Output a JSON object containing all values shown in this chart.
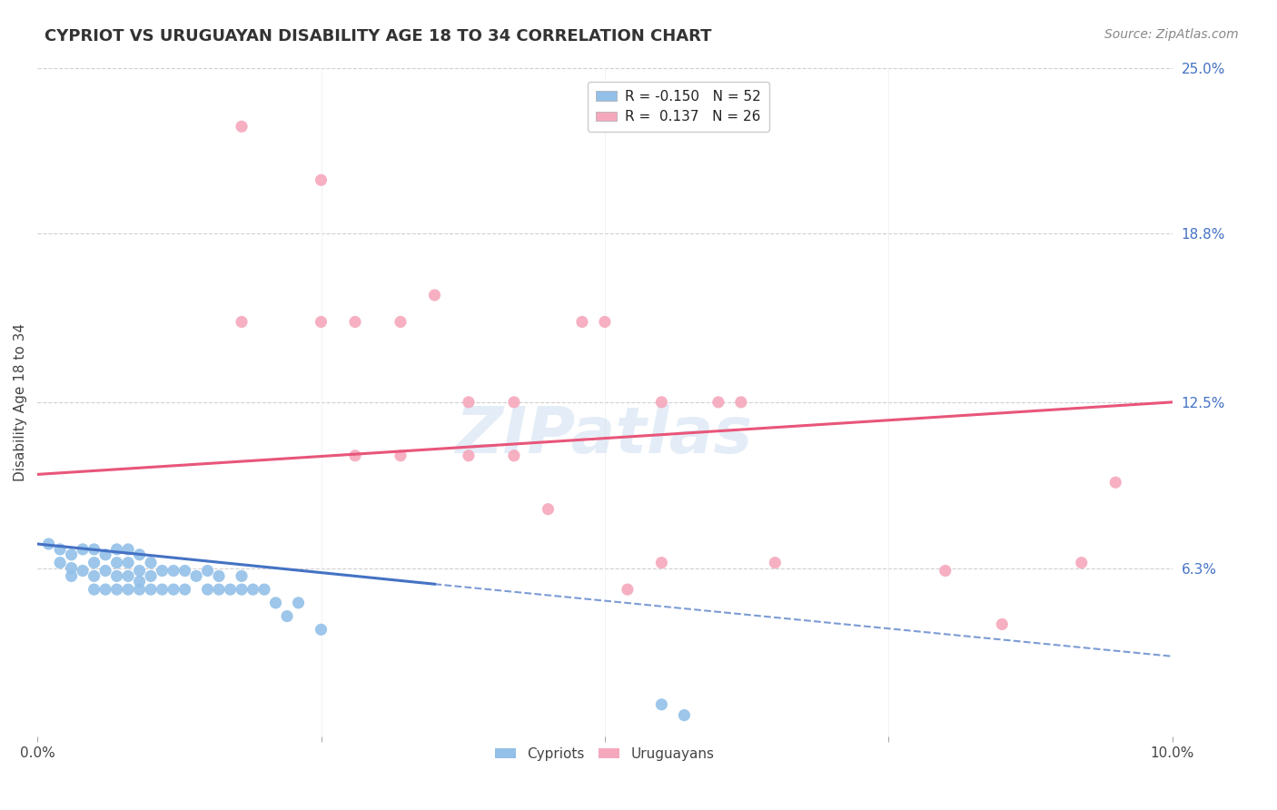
{
  "title": "CYPRIOT VS URUGUAYAN DISABILITY AGE 18 TO 34 CORRELATION CHART",
  "source": "Source: ZipAtlas.com",
  "ylabel": "Disability Age 18 to 34",
  "xlim": [
    0.0,
    0.1
  ],
  "ylim": [
    0.0,
    0.25
  ],
  "ytick_positions": [
    0.063,
    0.125,
    0.188,
    0.25
  ],
  "ytick_labels": [
    "6.3%",
    "12.5%",
    "18.8%",
    "25.0%"
  ],
  "xtick_positions": [
    0.0,
    0.025,
    0.05,
    0.075,
    0.1
  ],
  "xtick_labels": [
    "0.0%",
    "",
    "",
    "",
    "10.0%"
  ],
  "cypriot_color": "#92c0e8",
  "uruguayan_color": "#f5a8bc",
  "cypriot_line_color": "#4472c4",
  "uruguayan_line_color": "#e8567a",
  "cypriot_R": -0.15,
  "cypriot_N": 52,
  "uruguayan_R": 0.137,
  "uruguayan_N": 26,
  "background_color": "#ffffff",
  "grid_color": "#d0d0d0",
  "cypriot_x": [
    0.001,
    0.002,
    0.002,
    0.003,
    0.003,
    0.003,
    0.004,
    0.004,
    0.005,
    0.005,
    0.005,
    0.005,
    0.006,
    0.006,
    0.006,
    0.007,
    0.007,
    0.007,
    0.007,
    0.008,
    0.008,
    0.008,
    0.008,
    0.009,
    0.009,
    0.009,
    0.009,
    0.01,
    0.01,
    0.01,
    0.011,
    0.011,
    0.012,
    0.012,
    0.013,
    0.013,
    0.014,
    0.015,
    0.015,
    0.016,
    0.016,
    0.017,
    0.018,
    0.018,
    0.019,
    0.02,
    0.021,
    0.022,
    0.023,
    0.025,
    0.055,
    0.057
  ],
  "cypriot_y": [
    0.072,
    0.065,
    0.07,
    0.06,
    0.063,
    0.068,
    0.062,
    0.07,
    0.055,
    0.06,
    0.065,
    0.07,
    0.055,
    0.062,
    0.068,
    0.055,
    0.06,
    0.065,
    0.07,
    0.055,
    0.06,
    0.065,
    0.07,
    0.055,
    0.058,
    0.062,
    0.068,
    0.055,
    0.06,
    0.065,
    0.055,
    0.062,
    0.055,
    0.062,
    0.055,
    0.062,
    0.06,
    0.055,
    0.062,
    0.055,
    0.06,
    0.055,
    0.055,
    0.06,
    0.055,
    0.055,
    0.05,
    0.045,
    0.05,
    0.04,
    0.012,
    0.008
  ],
  "uruguayan_x": [
    0.018,
    0.025,
    0.035,
    0.018,
    0.025,
    0.028,
    0.032,
    0.038,
    0.042,
    0.05,
    0.055,
    0.028,
    0.032,
    0.038,
    0.042,
    0.045,
    0.052,
    0.06,
    0.065,
    0.08,
    0.085,
    0.092,
    0.095,
    0.048,
    0.055,
    0.062
  ],
  "uruguayan_y": [
    0.228,
    0.208,
    0.165,
    0.155,
    0.155,
    0.155,
    0.155,
    0.125,
    0.125,
    0.155,
    0.125,
    0.105,
    0.105,
    0.105,
    0.105,
    0.085,
    0.055,
    0.125,
    0.065,
    0.062,
    0.042,
    0.065,
    0.095,
    0.155,
    0.065,
    0.125
  ],
  "cypriot_line_x0": 0.0,
  "cypriot_line_x_solid_end": 0.035,
  "cypriot_line_x1": 0.1,
  "cypriot_line_y0": 0.072,
  "cypriot_line_y_solid_end": 0.057,
  "cypriot_line_y1": 0.03,
  "uruguayan_line_x0": 0.0,
  "uruguayan_line_x1": 0.1,
  "uruguayan_line_y0": 0.098,
  "uruguayan_line_y1": 0.125
}
